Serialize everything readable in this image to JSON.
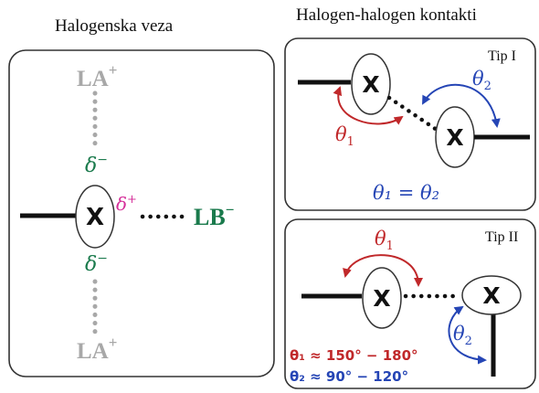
{
  "left_panel": {
    "title": "Halogenska veza",
    "atom": "X",
    "la_top_base": "LA",
    "la_top_sup": "+",
    "la_bottom_base": "LA",
    "la_bottom_sup": "+",
    "lb_base": "LB",
    "lb_sup": "−",
    "delta_top": "δ",
    "delta_top_sup": "−",
    "delta_bottom": "δ",
    "delta_bottom_sup": "−",
    "delta_right": "δ",
    "delta_right_sup": "+"
  },
  "right_title": "Halogen-halogen kontakti",
  "type1": {
    "label": "Tip I",
    "atom_left": "X",
    "atom_right": "X",
    "theta1": "θ",
    "theta1_sub": "1",
    "theta2": "θ",
    "theta2_sub": "2",
    "equation": "θ₁ = θ₂"
  },
  "type2": {
    "label": "Tip II",
    "atom_left": "X",
    "atom_right": "X",
    "theta1": "θ",
    "theta1_sub": "1",
    "theta2": "θ",
    "theta2_sub": "2",
    "angle1": "θ₁ ≈ 150° − 180°",
    "angle2": "θ₂ ≈ 90°  − 120°"
  },
  "colors": {
    "red": "#c0282a",
    "blue": "#2545b5",
    "green": "#1a7a4c",
    "magenta": "#d5309a",
    "grey": "#a8a8a8",
    "dark": "#111111"
  }
}
